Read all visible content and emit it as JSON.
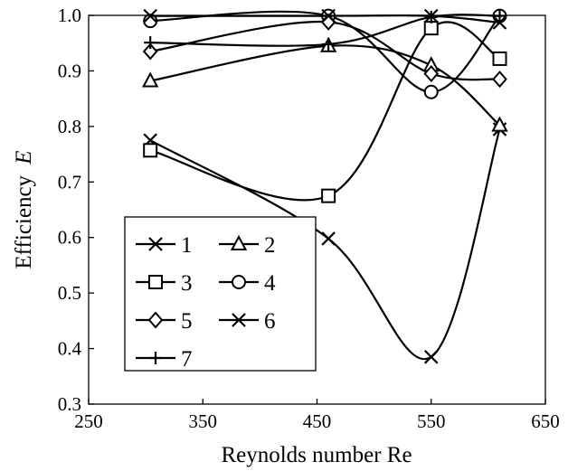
{
  "chart_data": {
    "type": "line",
    "title": "",
    "xlabel": "Reynolds number Re",
    "ylabel_main": "Efficiency",
    "ylabel_var": "E",
    "xlim": [
      250,
      650
    ],
    "ylim": [
      0.3,
      1.0
    ],
    "xticks": [
      "250",
      "350",
      "450",
      "550",
      "650"
    ],
    "yticks": [
      "0.3",
      "0.4",
      "0.5",
      "0.6",
      "0.7",
      "0.8",
      "0.9",
      "1.0"
    ],
    "grid": false,
    "legend_position": "lower-left",
    "smooth": true,
    "x": [
      304,
      460,
      550,
      610
    ],
    "series": [
      {
        "name": "1",
        "marker": "x",
        "values": [
          0.775,
          0.598,
          0.385,
          0.795
        ]
      },
      {
        "name": "2",
        "marker": "triangle",
        "values": [
          0.882,
          0.945,
          0.91,
          0.802
        ]
      },
      {
        "name": "3",
        "marker": "square",
        "values": [
          0.757,
          0.675,
          0.977,
          0.922
        ]
      },
      {
        "name": "4",
        "marker": "circle",
        "values": [
          0.99,
          0.999,
          0.862,
          0.999
        ]
      },
      {
        "name": "5",
        "marker": "diamond",
        "values": [
          0.935,
          0.988,
          0.895,
          0.885
        ]
      },
      {
        "name": "6",
        "marker": "x",
        "values": [
          0.999,
          0.999,
          0.999,
          0.987
        ]
      },
      {
        "name": "7",
        "marker": "plus",
        "values": [
          0.951,
          0.948,
          0.997,
          0.999
        ]
      }
    ]
  }
}
